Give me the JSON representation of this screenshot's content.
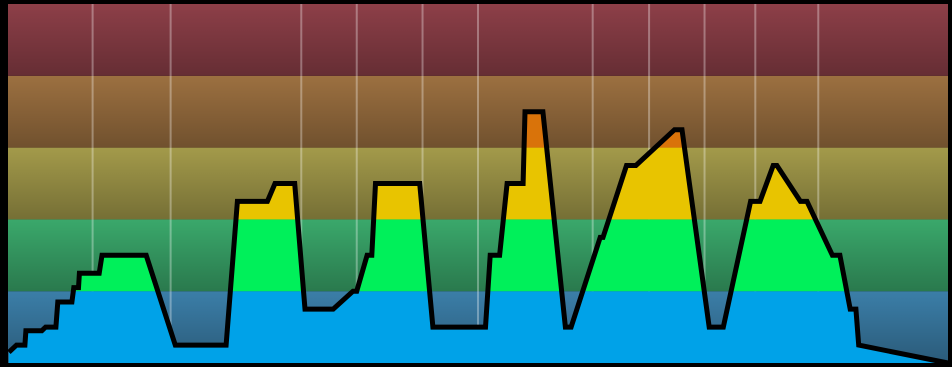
{
  "chart_data": {
    "type": "area",
    "title": "",
    "xlabel": "",
    "ylabel": "",
    "xlim": [
      0,
      100
    ],
    "ylim": [
      0,
      5
    ],
    "grid": true,
    "legend": "none",
    "zones": [
      {
        "name": "zone-1",
        "from": 0,
        "to": 1,
        "background": "#3b7ea8",
        "fill": "#00a2e8"
      },
      {
        "name": "zone-2",
        "from": 1,
        "to": 2,
        "background": "#3aa86b",
        "fill": "#00f05a"
      },
      {
        "name": "zone-3",
        "from": 2,
        "to": 3,
        "background": "#a39a4a",
        "fill": "#e8c400"
      },
      {
        "name": "zone-4",
        "from": 3,
        "to": 4,
        "background": "#9c7040",
        "fill": "#d9730a"
      },
      {
        "name": "zone-5",
        "from": 4,
        "to": 5,
        "background": "#8d3f48",
        "fill": "#e05050"
      }
    ],
    "x_gridlines": [
      9.0,
      17.3,
      31.2,
      37.1,
      44.1,
      50.0,
      62.2,
      68.2,
      74.1,
      79.5,
      86.2
    ],
    "series": [
      {
        "x": [
          0.1,
          0.9,
          1.8,
          1.9,
          3.6,
          4.0,
          5.1,
          5.3,
          6.8,
          7.0,
          7.5,
          7.6,
          9.7,
          10.0,
          14.7,
          17.8,
          23.2,
          24.4,
          27.6,
          28.4,
          30.5,
          31.6,
          34.6,
          36.7,
          37.1,
          38.2,
          38.7,
          39.1,
          43.8,
          45.2,
          50.8,
          51.3,
          52.3,
          53.1,
          54.8,
          55.0,
          56.9,
          59.3,
          59.9,
          63.0,
          63.3,
          65.8,
          66.8,
          70.9,
          71.7,
          74.6,
          76.1,
          79.0,
          80.0,
          81.4,
          81.8,
          84.3,
          85.0,
          87.7,
          88.5,
          89.6,
          90.2,
          90.5,
          100.0
        ],
        "y": [
          0.15,
          0.25,
          0.25,
          0.45,
          0.45,
          0.5,
          0.5,
          0.85,
          0.85,
          1.05,
          1.05,
          1.25,
          1.25,
          1.5,
          1.5,
          0.25,
          0.25,
          2.25,
          2.25,
          2.5,
          2.5,
          0.75,
          0.75,
          1.0,
          1.0,
          1.5,
          1.5,
          2.5,
          2.5,
          0.5,
          0.5,
          1.5,
          1.5,
          2.5,
          2.5,
          3.5,
          3.5,
          0.5,
          0.5,
          1.75,
          1.75,
          2.75,
          2.75,
          3.25,
          3.25,
          0.5,
          0.5,
          2.25,
          2.25,
          2.75,
          2.75,
          2.25,
          2.25,
          1.5,
          1.5,
          0.75,
          0.75,
          0.25,
          0.0
        ]
      }
    ]
  }
}
